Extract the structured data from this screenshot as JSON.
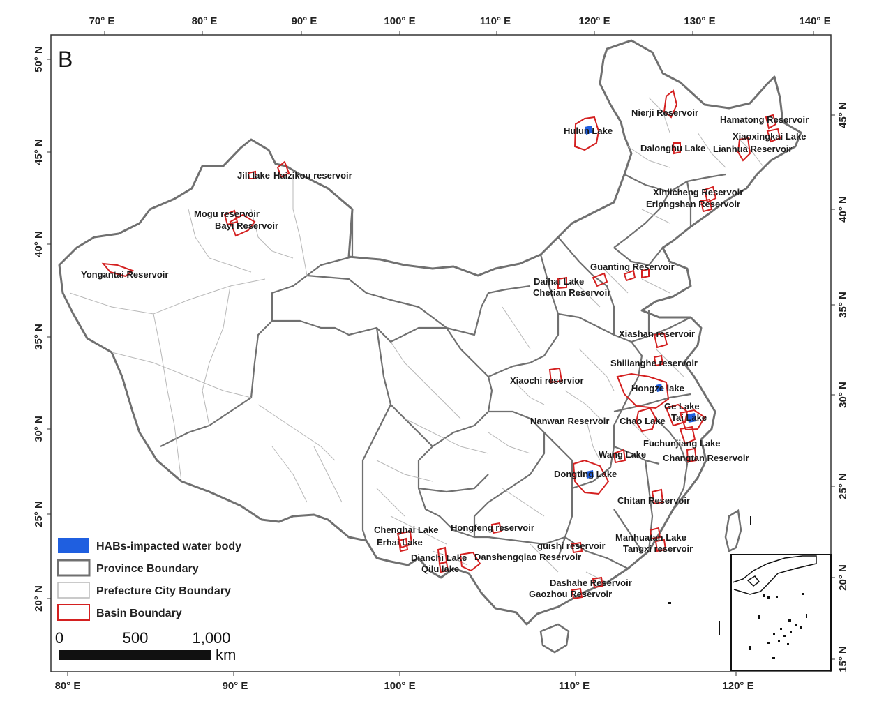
{
  "panel_label": "B",
  "axes": {
    "top_ticks": [
      "70° E",
      "80° E",
      "90° E",
      "100° E",
      "110° E",
      "120° E",
      "130° E",
      "140° E"
    ],
    "bottom_ticks": [
      "80° E",
      "90° E",
      "100° E",
      "110° E",
      "120° E"
    ],
    "left_ticks": [
      "50° N",
      "45° N",
      "40° N",
      "35° N",
      "30° N",
      "25° N",
      "20° N"
    ],
    "right_ticks": [
      "45° N",
      "40° N",
      "35° N",
      "30° N",
      "25° N",
      "20° N",
      "15° N"
    ]
  },
  "colors": {
    "habs_fill": "#1f5fe0",
    "province_boundary": "#6e6e6e",
    "prefecture_boundary": "#b4b4b4",
    "basin_boundary": "#d42020"
  },
  "water_bodies": [
    "Nierji Reservoir",
    "Hamatong Reservoir",
    "Hulun Lake",
    "Xiaoxingkai Lake",
    "Dalonghu Lake",
    "Lianhua Reservoir",
    "Jili lake",
    "Haizikou reservoir",
    "Xinlicheng Reservoir",
    "Erlongshan Reservoir",
    "Mogu reservoir",
    "Bayi Reservoir",
    "Yongantai Reservoir",
    "Guanting Reservoir",
    "Daihai Lake",
    "Chetian Reservoir",
    "Xiashan reservoir",
    "Shilianghe reservoir",
    "Xiaochi reservior",
    "Hongze lake",
    "Ge Lake",
    "Nanwan Reservoir",
    "Chao Lake",
    "Tai Lake",
    "Fuchunjiang Lake",
    "Wang Lake",
    "Changtan Reservoir",
    "Dongting Lake",
    "Chitan Reservoir",
    "Chenghai Lake",
    "Hongfeng reservoir",
    "Erhai Lake",
    "Manhuatan Lake",
    "guishi reservoir",
    "Tangxi reservoir",
    "Dianchi Lake",
    "Danshengqiao Reservoir",
    "Qilu lake",
    "Dashahe Reservoir",
    "Gaozhou Reservoir"
  ],
  "legend": {
    "items": [
      {
        "label": "HABs-impacted water body",
        "icon": "blue-fill-swatch"
      },
      {
        "label": "Province Boundary",
        "icon": "dark-gray-outline-swatch"
      },
      {
        "label": "Prefecture City Boundary",
        "icon": "light-gray-outline-swatch"
      },
      {
        "label": "Basin Boundary",
        "icon": "red-outline-swatch"
      }
    ]
  },
  "scale_bar": {
    "ticks": [
      "0",
      "500",
      "1,000"
    ],
    "unit": "km"
  }
}
